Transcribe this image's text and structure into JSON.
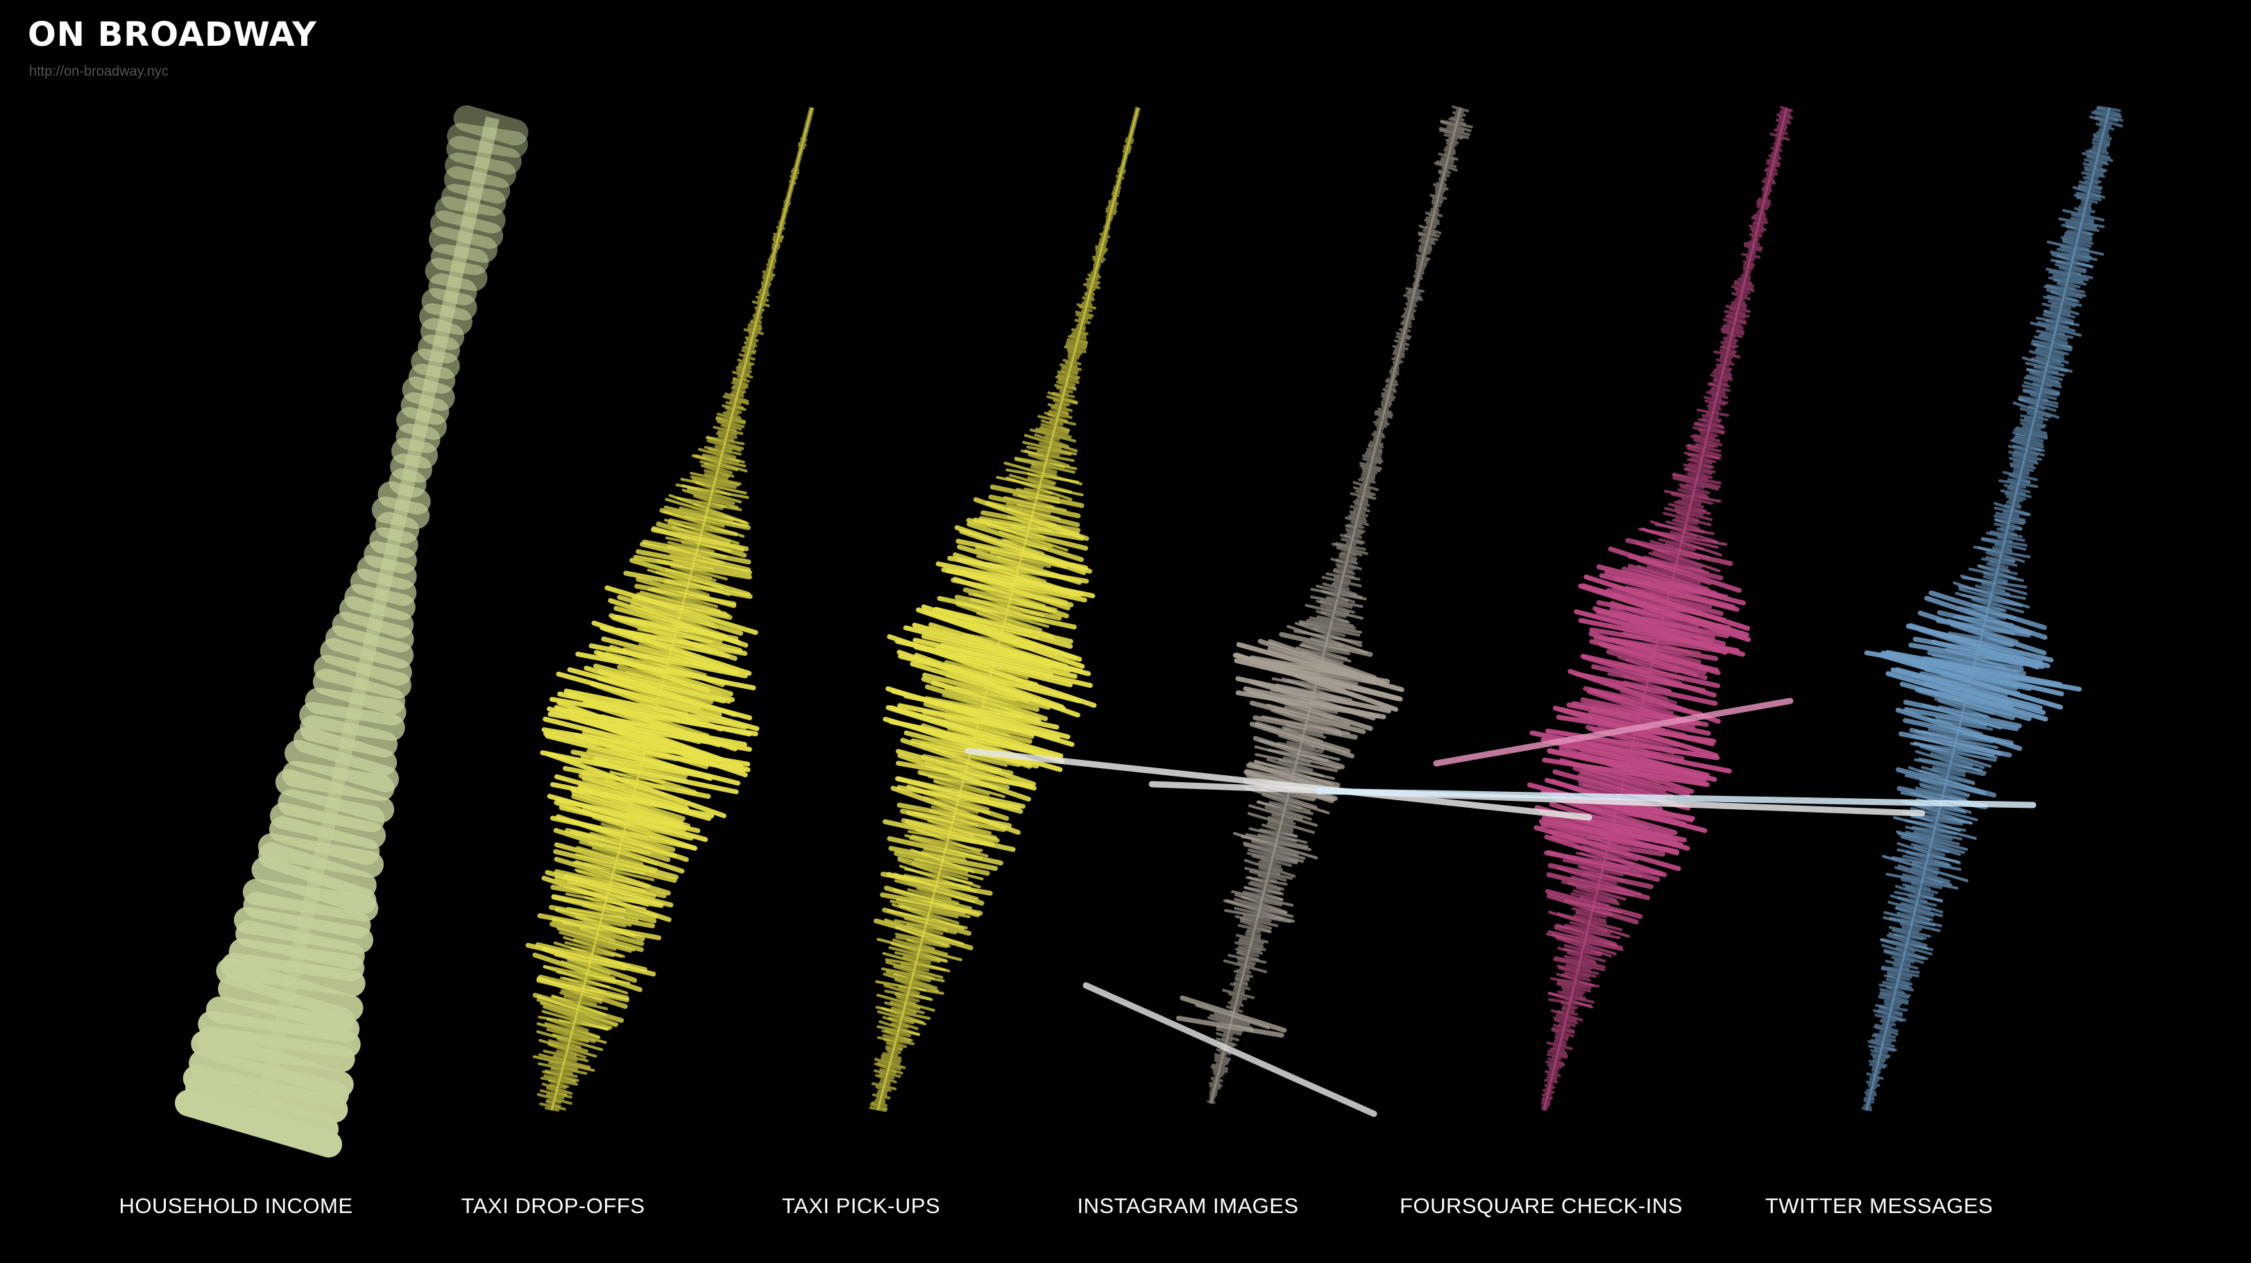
{
  "page": {
    "title": "ON BROADWAY",
    "subtitle": "http://on-broadway.nyc"
  },
  "chart_data": {
    "type": "area",
    "title": "ON BROADWAY",
    "subtitle": "http://on-broadway.nyc",
    "x_description": "position along Broadway",
    "series": [
      {
        "name": "HOUSEHOLD INCOME",
        "color": "#c5d19a",
        "style": "blocks",
        "values": [
          0.22,
          0.24,
          0.22,
          0.2,
          0.18,
          0.17,
          0.2,
          0.21,
          0.19,
          0.14,
          0.16,
          0.1,
          0.13,
          0.12,
          0.08,
          0.07,
          0.1,
          0.09,
          0.12,
          0.1,
          0.11,
          0.08,
          0.09,
          0.07,
          0.05,
          0.12,
          0.14,
          0.08,
          0.1,
          0.12,
          0.15,
          0.18,
          0.2,
          0.22,
          0.25,
          0.28,
          0.3,
          0.32,
          0.3,
          0.33,
          0.35,
          0.32,
          0.35,
          0.4,
          0.38,
          0.42,
          0.36,
          0.4,
          0.38,
          0.44,
          0.42,
          0.45,
          0.48,
          0.45,
          0.5,
          0.46,
          0.48,
          0.52,
          0.55,
          0.5,
          0.56,
          0.6,
          0.58,
          0.62,
          0.6,
          0.62,
          0.58,
          0.64
        ]
      },
      {
        "name": "TAXI DROP-OFFS",
        "color": "#e8e24a",
        "style": "wave",
        "values": [
          0.01,
          0.01,
          0.02,
          0.01,
          0.02,
          0.01,
          0.02,
          0.02,
          0.03,
          0.02,
          0.04,
          0.03,
          0.05,
          0.03,
          0.06,
          0.04,
          0.05,
          0.07,
          0.05,
          0.08,
          0.1,
          0.12,
          0.15,
          0.18,
          0.22,
          0.25,
          0.3,
          0.35,
          0.32,
          0.38,
          0.42,
          0.45,
          0.4,
          0.5,
          0.48,
          0.55,
          0.6,
          0.58,
          0.62,
          0.7,
          0.75,
          0.68,
          0.72,
          0.65,
          0.6,
          0.55,
          0.58,
          0.52,
          0.5,
          0.45,
          0.48,
          0.42,
          0.45,
          0.5,
          0.4,
          0.38,
          0.42,
          0.35,
          0.3,
          0.32,
          0.28,
          0.25,
          0.2,
          0.18,
          0.15,
          0.12
        ]
      },
      {
        "name": "TAXI PICK-UPS",
        "color": "#e8e24a",
        "style": "wave",
        "values": [
          0.01,
          0.01,
          0.02,
          0.01,
          0.02,
          0.02,
          0.03,
          0.02,
          0.03,
          0.04,
          0.03,
          0.05,
          0.04,
          0.06,
          0.05,
          0.07,
          0.06,
          0.08,
          0.07,
          0.1,
          0.12,
          0.15,
          0.18,
          0.22,
          0.28,
          0.3,
          0.34,
          0.38,
          0.4,
          0.45,
          0.48,
          0.52,
          0.5,
          0.55,
          0.6,
          0.62,
          0.66,
          0.7,
          0.65,
          0.68,
          0.62,
          0.6,
          0.55,
          0.58,
          0.5,
          0.52,
          0.48,
          0.45,
          0.4,
          0.44,
          0.38,
          0.36,
          0.32,
          0.3,
          0.34,
          0.28,
          0.25,
          0.22,
          0.2,
          0.18,
          0.15,
          0.12,
          0.1,
          0.12,
          0.08,
          0.06
        ]
      },
      {
        "name": "INSTAGRAM IMAGES",
        "color": "#a8a095",
        "style": "wave",
        "values": [
          0.06,
          0.1,
          0.05,
          0.08,
          0.04,
          0.06,
          0.03,
          0.05,
          0.07,
          0.04,
          0.05,
          0.03,
          0.06,
          0.04,
          0.03,
          0.05,
          0.04,
          0.03,
          0.05,
          0.04,
          0.06,
          0.04,
          0.05,
          0.07,
          0.06,
          0.08,
          0.07,
          0.1,
          0.08,
          0.12,
          0.1,
          0.14,
          0.18,
          0.2,
          0.22,
          0.35,
          0.45,
          0.55,
          0.6,
          0.5,
          0.4,
          0.35,
          0.3,
          0.28,
          0.35,
          0.3,
          0.25,
          0.22,
          0.28,
          0.2,
          0.18,
          0.15,
          0.2,
          0.25,
          0.12,
          0.1,
          0.15,
          0.08,
          0.1,
          0.06,
          0.35,
          0.08,
          0.05,
          0.06,
          0.04,
          0.03
        ]
      },
      {
        "name": "FOURSQUARE CHECK-INS",
        "color": "#c04a86",
        "style": "wave",
        "values": [
          0.05,
          0.06,
          0.03,
          0.04,
          0.05,
          0.03,
          0.04,
          0.05,
          0.04,
          0.06,
          0.05,
          0.07,
          0.06,
          0.08,
          0.07,
          0.06,
          0.08,
          0.07,
          0.1,
          0.09,
          0.12,
          0.1,
          0.14,
          0.12,
          0.16,
          0.18,
          0.2,
          0.24,
          0.28,
          0.35,
          0.45,
          0.55,
          0.6,
          0.7,
          0.65,
          0.5,
          0.48,
          0.45,
          0.5,
          0.55,
          0.6,
          0.58,
          0.65,
          0.62,
          0.7,
          0.68,
          0.6,
          0.55,
          0.48,
          0.42,
          0.38,
          0.35,
          0.32,
          0.28,
          0.25,
          0.22,
          0.2,
          0.18,
          0.15,
          0.12,
          0.1,
          0.08,
          0.06,
          0.05,
          0.04,
          0.03
        ]
      },
      {
        "name": "TWITTER MESSAGES",
        "color": "#6e9cc4",
        "style": "wave",
        "values": [
          0.12,
          0.08,
          0.06,
          0.1,
          0.08,
          0.12,
          0.09,
          0.15,
          0.1,
          0.2,
          0.18,
          0.14,
          0.22,
          0.16,
          0.2,
          0.15,
          0.18,
          0.14,
          0.12,
          0.16,
          0.1,
          0.12,
          0.14,
          0.1,
          0.12,
          0.1,
          0.14,
          0.12,
          0.15,
          0.18,
          0.2,
          0.25,
          0.3,
          0.4,
          0.5,
          0.55,
          0.65,
          0.7,
          0.6,
          0.5,
          0.42,
          0.38,
          0.35,
          0.32,
          0.38,
          0.3,
          0.28,
          0.32,
          0.25,
          0.22,
          0.28,
          0.2,
          0.18,
          0.22,
          0.15,
          0.18,
          0.12,
          0.14,
          0.1,
          0.12,
          0.08,
          0.1,
          0.06,
          0.05,
          0.04,
          0.03
        ]
      }
    ]
  }
}
